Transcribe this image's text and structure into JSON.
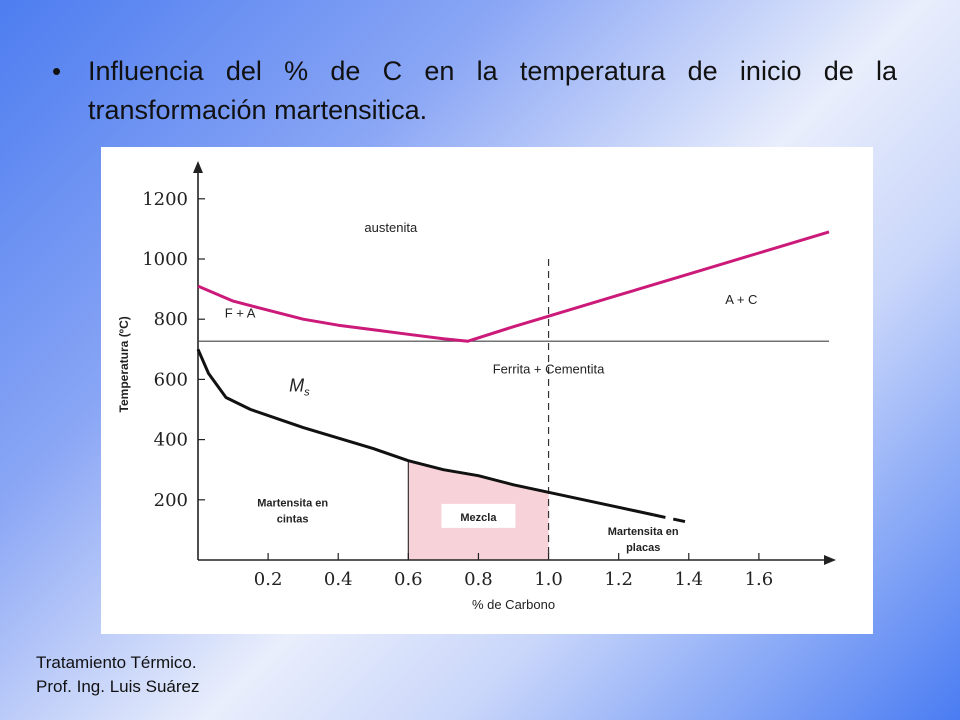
{
  "slide": {
    "bullet": "Influencia del % de C en la temperatura de inicio de la transformación martensitica.",
    "footer_line1": "Tratamiento Térmico.",
    "footer_line2": "Prof. Ing. Luis Suárez"
  },
  "chart_data": {
    "type": "line",
    "title": "",
    "xlabel": "% de Carbono",
    "ylabel": "Temperatura (ºC)",
    "xlim": [
      0,
      1.8
    ],
    "ylim": [
      0,
      1300
    ],
    "x_ticks": [
      "0.2",
      "0.4",
      "0.6",
      "0.8",
      "1.0",
      "1.2",
      "1.4",
      "1.6"
    ],
    "y_ticks": [
      "200",
      "400",
      "600",
      "800",
      "1000",
      "1200"
    ],
    "grid": false,
    "colors": {
      "upper_boundary": "#cc1a7a",
      "ms_curve": "#111111",
      "mezcla_fill": "#f7d2d8"
    },
    "series": [
      {
        "name": "",
        "role": "A3 / Acm boundary",
        "x": [
          0.0,
          0.1,
          0.2,
          0.3,
          0.4,
          0.5,
          0.6,
          0.7,
          0.77,
          0.9,
          1.0,
          1.2,
          1.4,
          1.6,
          1.8
        ],
        "y": [
          910,
          860,
          830,
          800,
          780,
          765,
          750,
          735,
          727,
          775,
          810,
          880,
          950,
          1020,
          1090
        ]
      },
      {
        "name": "",
        "role": "Eutectoid line",
        "x": [
          0.0,
          1.8
        ],
        "y": [
          727,
          727
        ]
      },
      {
        "name": "Ms",
        "role": "Ms curve",
        "x": [
          0.0,
          0.03,
          0.08,
          0.15,
          0.3,
          0.5,
          0.6,
          0.7,
          0.8,
          0.9,
          1.0,
          1.1,
          1.2,
          1.3
        ],
        "y": [
          700,
          620,
          540,
          500,
          440,
          370,
          330,
          300,
          280,
          250,
          225,
          200,
          175,
          150
        ]
      },
      {
        "name": "",
        "role": "Ms curve extension (dashed)",
        "x": [
          1.3,
          1.4
        ],
        "y": [
          150,
          125
        ]
      }
    ],
    "vertical_marker": {
      "x": 1.0,
      "style": "dashed"
    },
    "regions": [
      {
        "label": "austenita",
        "x": 0.55,
        "y": 1090
      },
      {
        "label": "F + A",
        "x": 0.12,
        "y": 805
      },
      {
        "label": "A + C",
        "x": 1.55,
        "y": 850
      },
      {
        "label": "Ferrita + Cementita",
        "x": 1.0,
        "y": 620
      },
      {
        "label": "Martensita en cintas",
        "x": 0.27,
        "y": 165
      },
      {
        "label": "Mezcla",
        "x": 0.8,
        "y": 140
      },
      {
        "label": "Martensita en placas",
        "x": 1.27,
        "y": 70
      }
    ]
  }
}
